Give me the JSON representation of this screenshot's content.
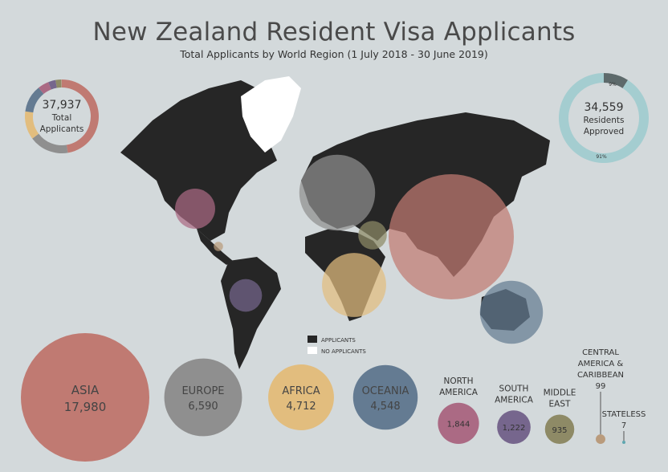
{
  "title": "New Zealand Resident Visa Applicants",
  "subtitle": "Total Applicants by World Region (1 July 2018 - 30 June 2019)",
  "total_donut": {
    "value": "37,937",
    "line1": "Total",
    "line2": "Applicants"
  },
  "approved_donut": {
    "value": "34,559",
    "line1": "Residents",
    "line2": "Approved",
    "pct_small": "9%",
    "pct_large": "91%",
    "small_fraction": 0.09
  },
  "legend": {
    "applicants": "APPLICANTS",
    "no_applicants": "NO APPLICANTS"
  },
  "chart_data": {
    "type": "bubble",
    "regions": [
      {
        "name": "ASIA",
        "label": "17,980",
        "value": 17980,
        "color": "#c07a72"
      },
      {
        "name": "EUROPE",
        "label": "6,590",
        "value": 6590,
        "color": "#8f8f8f"
      },
      {
        "name": "AFRICA",
        "label": "4,712",
        "value": 4712,
        "color": "#e2bd7e"
      },
      {
        "name": "OCEANIA",
        "label": "4,548",
        "value": 4548,
        "color": "#647b92"
      },
      {
        "name": "NORTH AMERICA",
        "label": "1,844",
        "value": 1844,
        "color": "#ab6a84"
      },
      {
        "name": "SOUTH AMERICA",
        "label": "1,222",
        "value": 1222,
        "color": "#76668d"
      },
      {
        "name": "MIDDLE EAST",
        "label": "935",
        "value": 935,
        "color": "#8e8a66"
      },
      {
        "name": "CENTRAL AMERICA & CARIBBEAN",
        "label": "99",
        "value": 99,
        "color": "#b99b7c"
      },
      {
        "name": "STATELESS",
        "label": "7",
        "value": 7,
        "color": "#5fa7b0"
      }
    ]
  }
}
